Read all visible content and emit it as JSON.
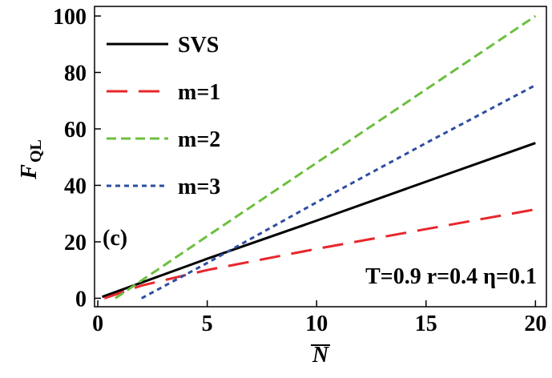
{
  "chart_data": {
    "type": "line",
    "xlabel": "N",
    "ylabel": "F",
    "ylabel_sub": "QL",
    "annotations": [
      "(c)",
      "T=0.9 r=0.4 η=0.1"
    ],
    "xlim": [
      -0.15,
      20.5
    ],
    "ylim": [
      -3,
      103.4
    ],
    "xticks": [
      0,
      5,
      10,
      15,
      20
    ],
    "yticks": [
      0,
      20,
      40,
      60,
      80,
      100
    ],
    "legend": "upper left",
    "series": [
      {
        "name": "SVS",
        "color": "#000000",
        "dash": "solid",
        "x": [
          0.2,
          5,
          10,
          15,
          20
        ],
        "values": [
          0.5,
          14,
          27.5,
          41.3,
          55
        ]
      },
      {
        "name": "m=1",
        "color": "#e8262b",
        "dash": "long",
        "x": [
          0.3,
          2,
          5,
          10,
          15,
          20
        ],
        "values": [
          0,
          4.5,
          10,
          17.5,
          24.5,
          31.5
        ]
      },
      {
        "name": "m=2",
        "color": "#6cbf3f",
        "dash": "medium",
        "x": [
          0.8,
          5,
          10,
          15,
          20
        ],
        "values": [
          0,
          22,
          48,
          74,
          100
        ]
      },
      {
        "name": "m=3",
        "color": "#2f4da0",
        "dash": "short",
        "x": [
          2,
          5,
          10,
          15,
          20
        ],
        "values": [
          0,
          12.5,
          34,
          55,
          75.5
        ]
      }
    ]
  }
}
